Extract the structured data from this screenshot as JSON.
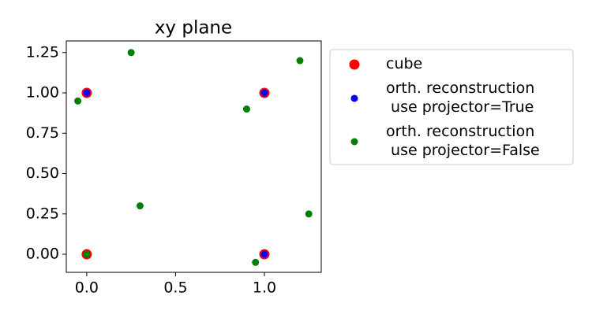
{
  "chart_data": {
    "type": "scatter",
    "title": "xy plane",
    "series": [
      {
        "name": "cube",
        "color": "#ff0000",
        "x": [
          0,
          0,
          1,
          1
        ],
        "values": [
          0,
          1,
          0,
          1
        ]
      },
      {
        "name": "orth. reconstruction\n use projector=True",
        "color": "#0000ff",
        "x": [
          0,
          0,
          1,
          1
        ],
        "values": [
          0,
          1,
          0,
          1
        ]
      },
      {
        "name": "orth. reconstruction\n use projector=False",
        "color": "#008000",
        "x": [
          0,
          -0.05,
          0.25,
          0.3,
          0.9,
          1.2,
          1.25,
          0.95
        ],
        "values": [
          0,
          0.95,
          1.25,
          0.3,
          0.9,
          1.2,
          0.25,
          -0.05
        ]
      }
    ],
    "xlim": [
      -0.115,
      1.32
    ],
    "ylim": [
      -0.112,
      1.322
    ],
    "xticks": [
      {
        "value": 0,
        "label": "0.0"
      },
      {
        "value": 0.5,
        "label": "0.5"
      },
      {
        "value": 1,
        "label": "1.0"
      }
    ],
    "yticks": [
      {
        "value": 0,
        "label": "0.00"
      },
      0.25,
      {
        "value": 0.5,
        "label": "0.50"
      },
      0.75,
      {
        "value": 1,
        "label": "1.00"
      },
      1.25
    ],
    "legend": "outside-right"
  }
}
